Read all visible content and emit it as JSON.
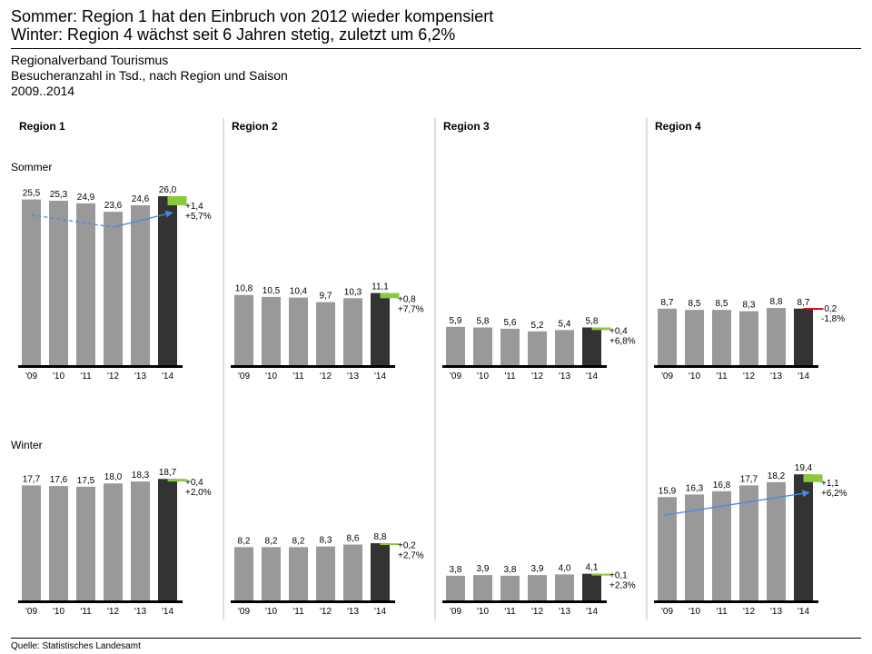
{
  "header": {
    "headline_1": "Sommer: Region 1 hat den Einbruch von 2012 wieder kompensiert",
    "headline_2": "Winter: Region 4 wächst seit 6 Jahren stetig, zuletzt um 6,2%",
    "organization": "Regionalverband Tourismus",
    "measure": "Besucheranzahl in Tsd., nach Region und Saison",
    "period": "2009..2014"
  },
  "footer": {
    "source": "Quelle: Statistisches Landesamt"
  },
  "colors": {
    "bar_past": "#999999",
    "bar_current": "#333333",
    "positive_delta": "#8cc83c",
    "negative_delta": "#e3001b",
    "axis": "#000000",
    "separator": "#bbbbbb",
    "arrow": "#4a86e8"
  },
  "chart_data": {
    "type": "bar",
    "layout": "small-multiples",
    "categories": [
      "'09",
      "'10",
      "'11",
      "'12",
      "'13",
      "'14"
    ],
    "regions": [
      "Region 1",
      "Region 2",
      "Region 3",
      "Region 4"
    ],
    "seasons": [
      "Sommer",
      "Winter"
    ],
    "ylim": [
      0,
      26.0
    ],
    "panels": [
      {
        "region": "Region 1",
        "season": "Sommer",
        "values": [
          25.5,
          25.3,
          24.9,
          23.6,
          24.6,
          26.0
        ],
        "labels": [
          "25,5",
          "25,3",
          "24,9",
          "23,6",
          "24,6",
          "26,0"
        ],
        "delta_abs": "+1,4",
        "delta_pct": "+5,7%",
        "trend": "positive",
        "annotation": {
          "type": "arrows",
          "from": "'09",
          "via": "'12",
          "to": "'14"
        }
      },
      {
        "region": "Region 2",
        "season": "Sommer",
        "values": [
          10.8,
          10.5,
          10.4,
          9.7,
          10.3,
          11.1
        ],
        "labels": [
          "10,8",
          "10,5",
          "10,4",
          "9,7",
          "10,3",
          "11,1"
        ],
        "delta_abs": "+0,8",
        "delta_pct": "+7,7%",
        "trend": "positive"
      },
      {
        "region": "Region 3",
        "season": "Sommer",
        "values": [
          5.9,
          5.8,
          5.6,
          5.2,
          5.4,
          5.8
        ],
        "labels": [
          "5,9",
          "5,8",
          "5,6",
          "5,2",
          "5,4",
          "5,8"
        ],
        "delta_abs": "+0,4",
        "delta_pct": "+6,8%",
        "trend": "positive"
      },
      {
        "region": "Region 4",
        "season": "Sommer",
        "values": [
          8.7,
          8.5,
          8.5,
          8.3,
          8.8,
          8.7
        ],
        "labels": [
          "8,7",
          "8,5",
          "8,5",
          "8,3",
          "8,8",
          "8,7"
        ],
        "delta_abs": "-0,2",
        "delta_pct": "-1,8%",
        "trend": "negative"
      },
      {
        "region": "Region 1",
        "season": "Winter",
        "values": [
          17.7,
          17.6,
          17.5,
          18.0,
          18.3,
          18.7
        ],
        "labels": [
          "17,7",
          "17,6",
          "17,5",
          "18,0",
          "18,3",
          "18,7"
        ],
        "delta_abs": "+0,4",
        "delta_pct": "+2,0%",
        "trend": "positive"
      },
      {
        "region": "Region 2",
        "season": "Winter",
        "values": [
          8.2,
          8.2,
          8.2,
          8.3,
          8.6,
          8.8
        ],
        "labels": [
          "8,2",
          "8,2",
          "8,2",
          "8,3",
          "8,6",
          "8,8"
        ],
        "delta_abs": "+0,2",
        "delta_pct": "+2,7%",
        "trend": "positive"
      },
      {
        "region": "Region 3",
        "season": "Winter",
        "values": [
          3.8,
          3.9,
          3.8,
          3.9,
          4.0,
          4.1
        ],
        "labels": [
          "3,8",
          "3,9",
          "3,8",
          "3,9",
          "4,0",
          "4,1"
        ],
        "delta_abs": "+0,1",
        "delta_pct": "+2,3%",
        "trend": "positive"
      },
      {
        "region": "Region 4",
        "season": "Winter",
        "values": [
          15.9,
          16.3,
          16.8,
          17.7,
          18.2,
          19.4
        ],
        "labels": [
          "15,9",
          "16,3",
          "16,8",
          "17,7",
          "18,2",
          "19,4"
        ],
        "delta_abs": "+1,1",
        "delta_pct": "+6,2%",
        "trend": "positive",
        "annotation": {
          "type": "arrow",
          "from": "'09",
          "to": "'14"
        }
      }
    ]
  }
}
